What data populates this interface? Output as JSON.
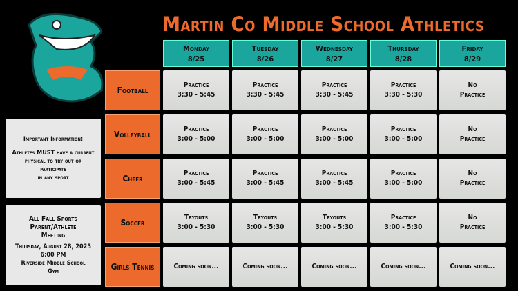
{
  "title": "Martin Co Middle School Athletics",
  "days": [
    {
      "name": "Monday",
      "date": "8/25"
    },
    {
      "name": "Tuesday",
      "date": "8/26"
    },
    {
      "name": "Wednesday",
      "date": "8/27"
    },
    {
      "name": "Thursday",
      "date": "8/28"
    },
    {
      "name": "Friday",
      "date": "8/29"
    }
  ],
  "sports": [
    {
      "name": "Football",
      "cells": [
        [
          "Practice",
          "3:30 - 5:45"
        ],
        [
          "Practice",
          "3:30 - 5:45"
        ],
        [
          "Practice",
          "3:30 - 5:45"
        ],
        [
          "Practice",
          "3:30 - 5:30"
        ],
        [
          "No",
          "Practice"
        ]
      ]
    },
    {
      "name": "Volleyball",
      "cells": [
        [
          "Practice",
          "3:00 - 5:00"
        ],
        [
          "Practice",
          "3:00 - 5:00"
        ],
        [
          "Practice",
          "3:00 - 5:00"
        ],
        [
          "Practice",
          "3:00 - 5:00"
        ],
        [
          "No",
          "Practice"
        ]
      ]
    },
    {
      "name": "Cheer",
      "cells": [
        [
          "Practice",
          "3:00 - 5:45"
        ],
        [
          "Practice",
          "3:00 - 5:45"
        ],
        [
          "Practice",
          "3:00 - 5:45"
        ],
        [
          "Practice",
          "3:00 - 5:00"
        ],
        [
          "No",
          "Practice"
        ]
      ]
    },
    {
      "name": "Soccer",
      "cells": [
        [
          "Tryouts",
          "3:00 - 5:30"
        ],
        [
          "Tryouts",
          "3:00 - 5:30"
        ],
        [
          "Tryouts",
          "3:00 - 5:30"
        ],
        [
          "Practice",
          "3:00 - 5:30"
        ],
        [
          "No",
          "Practice"
        ]
      ]
    },
    {
      "name": "Girls Tennis",
      "cells": [
        [
          "Coming soon..."
        ],
        [
          "Coming soon..."
        ],
        [
          "Coming soon..."
        ],
        [
          "Coming soon..."
        ],
        [
          "Coming soon..."
        ]
      ]
    }
  ],
  "info": [
    {
      "lines": [
        "Important Information:",
        "Athletes MUST have a current",
        "physical to try out or",
        "participate",
        "in any sport"
      ]
    },
    {
      "lines": [
        "All Fall Sports",
        "Parent/Athlete",
        "Meeting",
        "Thursday, August 28, 2025",
        "6:00 PM",
        "Riverside Middle School",
        "Gym"
      ]
    }
  ]
}
